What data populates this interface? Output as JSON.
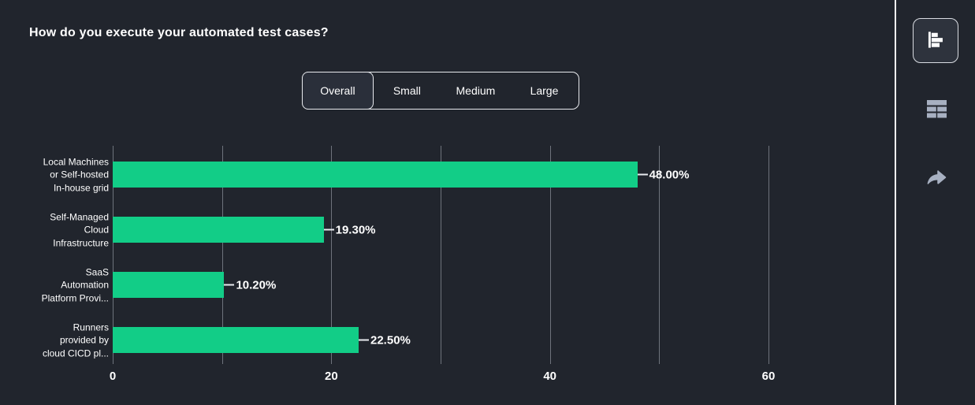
{
  "header": {
    "title": "How do you execute your automated test cases?"
  },
  "tabs": {
    "items": [
      {
        "label": "Overall",
        "selected": true
      },
      {
        "label": "Small",
        "selected": false
      },
      {
        "label": "Medium",
        "selected": false
      },
      {
        "label": "Large",
        "selected": false
      }
    ]
  },
  "sidebar": {
    "buttons": [
      {
        "icon": "horizontal-bar-chart-icon",
        "active": true
      },
      {
        "icon": "table-icon",
        "active": false
      },
      {
        "icon": "share-arrow-icon",
        "active": false
      }
    ]
  },
  "colors": {
    "background": "#21252d",
    "bar": "#12cd87",
    "gridline": "#6e737c",
    "text": "#ffffff",
    "muted_icon": "#a7b0c1",
    "divider": "#f2f3f5",
    "tab_border": "#e8eaee"
  },
  "chart_data": {
    "type": "bar",
    "orientation": "horizontal",
    "title": "How do you execute your automated test cases?",
    "categories": [
      "Local Machines or Self-hosted In-house grid",
      "Self-Managed Cloud Infrastructure",
      "SaaS Automation Platform Provi...",
      "Runners provided by cloud CICD pl..."
    ],
    "categories_lines": [
      [
        "Local Machines",
        "or Self-hosted",
        "In-house grid"
      ],
      [
        "Self-Managed",
        "Cloud",
        "Infrastructure"
      ],
      [
        "SaaS",
        "Automation",
        "Platform Provi..."
      ],
      [
        "Runners",
        "provided by",
        "cloud CICD pl..."
      ]
    ],
    "values": [
      48.0,
      19.3,
      10.2,
      22.5
    ],
    "value_labels": [
      "48.00%",
      "19.30%",
      "10.20%",
      "22.50%"
    ],
    "xlabel": "",
    "ylabel": "",
    "x_axis": {
      "range": [
        0,
        60
      ],
      "ticks": [
        0,
        10,
        20,
        30,
        40,
        50,
        60
      ],
      "labeled_ticks": [
        0,
        20,
        40,
        60
      ]
    },
    "grid": true,
    "legend": "none"
  }
}
